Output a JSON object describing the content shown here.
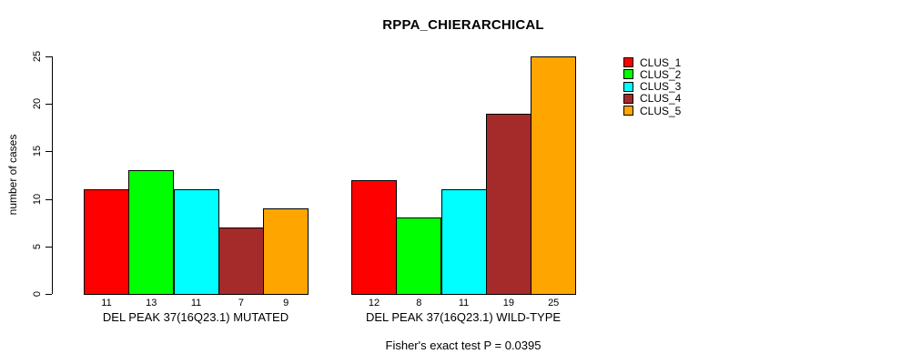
{
  "chart_data": {
    "type": "bar",
    "title": "RPPA_CHIERARCHICAL",
    "ylabel": "number of cases",
    "xlabel": "",
    "ylim": [
      0,
      25
    ],
    "yticks": [
      0,
      5,
      10,
      15,
      20,
      25
    ],
    "grid": false,
    "legend_position": "top-right",
    "bar_borders": "#000000",
    "groups": [
      {
        "label": "DEL PEAK 37(16Q23.1) MUTATED",
        "values": [
          11,
          13,
          11,
          7,
          9
        ]
      },
      {
        "label": "DEL PEAK 37(16Q23.1) WILD-TYPE",
        "values": [
          12,
          8,
          11,
          19,
          25
        ]
      }
    ],
    "series": [
      {
        "name": "CLUS_1",
        "color": "#ff0000"
      },
      {
        "name": "CLUS_2",
        "color": "#00ff00"
      },
      {
        "name": "CLUS_3",
        "color": "#00ffff"
      },
      {
        "name": "CLUS_4",
        "color": "#a52a2a"
      },
      {
        "name": "CLUS_5",
        "color": "#ffa500"
      }
    ],
    "annotation": "Fisher's exact test P = 0.0395"
  }
}
